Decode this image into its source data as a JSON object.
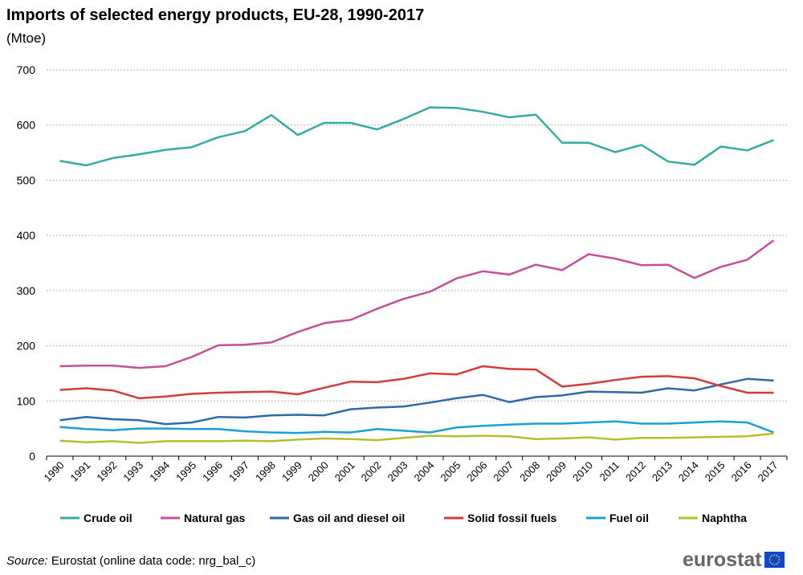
{
  "header": {
    "title": "Imports of selected energy products, EU-28, 1990-2017",
    "subtitle": "(Mtoe)"
  },
  "footer": {
    "source_label": "Source:",
    "source_text": " Eurostat (online data code: nrg_bal_c)",
    "logo_text": "eurostat"
  },
  "colors": {
    "Crude oil": "#35aba2",
    "Natural gas": "#c54f98",
    "Gas oil and diesel oil": "#2e6aa9",
    "Solid fossil fuels": "#d13d3c",
    "Fuel oil": "#1aa0d6",
    "Naphtha": "#b7be2b",
    "eu_flag": "#0e47cb",
    "eu_stars": "#ffcc00"
  },
  "chart_data": {
    "type": "line",
    "categories": [
      "1990",
      "1991",
      "1992",
      "1993",
      "1994",
      "1995",
      "1996",
      "1997",
      "1998",
      "1999",
      "2000",
      "2001",
      "2002",
      "2003",
      "2004",
      "2005",
      "2006",
      "2007",
      "2008",
      "2009",
      "2010",
      "2011",
      "2012",
      "2013",
      "2014",
      "2015",
      "2016",
      "2017"
    ],
    "ylim": [
      0,
      700
    ],
    "yticks": [
      0,
      100,
      200,
      300,
      400,
      500,
      600,
      700
    ],
    "grid": true,
    "legend": "bottom",
    "series": [
      {
        "name": "Crude oil",
        "values": [
          535,
          527,
          540,
          547,
          555,
          560,
          578,
          589,
          618,
          582,
          604,
          604,
          592,
          611,
          632,
          631,
          624,
          614,
          619,
          568,
          568,
          551,
          564,
          534,
          528,
          561,
          554,
          573
        ]
      },
      {
        "name": "Natural gas",
        "values": [
          163,
          164,
          164,
          160,
          163,
          180,
          201,
          202,
          206,
          225,
          241,
          247,
          267,
          285,
          298,
          322,
          335,
          329,
          347,
          337,
          366,
          358,
          346,
          347,
          323,
          343,
          356,
          391
        ]
      },
      {
        "name": "Gas oil and diesel oil",
        "values": [
          65,
          71,
          67,
          65,
          58,
          61,
          71,
          70,
          74,
          75,
          74,
          85,
          88,
          90,
          97,
          105,
          111,
          98,
          107,
          110,
          117,
          116,
          115,
          123,
          119,
          130,
          140,
          137
        ]
      },
      {
        "name": "Solid fossil fuels",
        "values": [
          120,
          123,
          119,
          105,
          108,
          113,
          115,
          116,
          117,
          112,
          124,
          135,
          134,
          140,
          150,
          148,
          163,
          158,
          157,
          126,
          131,
          138,
          144,
          145,
          141,
          127,
          115,
          115
        ]
      },
      {
        "name": "Fuel oil",
        "values": [
          53,
          49,
          47,
          50,
          50,
          49,
          49,
          45,
          43,
          42,
          44,
          43,
          49,
          46,
          43,
          52,
          55,
          57,
          59,
          59,
          61,
          63,
          59,
          59,
          61,
          63,
          61,
          43
        ]
      },
      {
        "name": "Naphtha",
        "values": [
          28,
          25,
          27,
          24,
          27,
          27,
          27,
          28,
          27,
          30,
          32,
          31,
          29,
          33,
          37,
          36,
          37,
          36,
          31,
          32,
          34,
          30,
          33,
          33,
          34,
          35,
          36,
          41
        ]
      }
    ]
  }
}
